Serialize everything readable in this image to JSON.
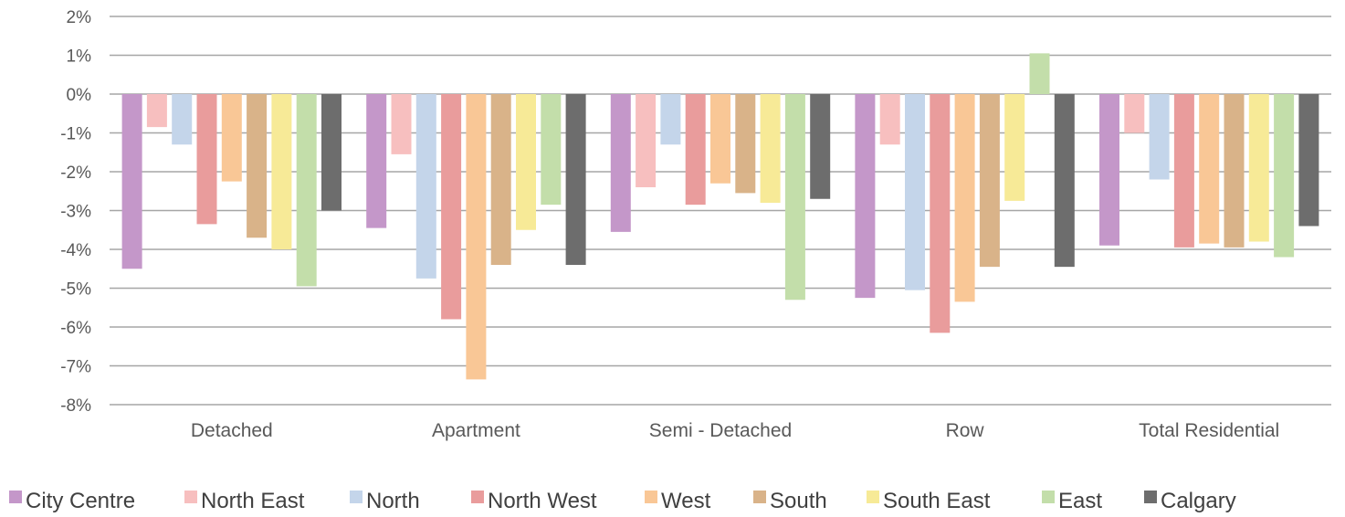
{
  "chart_data": {
    "type": "bar",
    "categories": [
      "Detached",
      "Apartment",
      "Semi - Detached",
      "Row",
      "Total Residential"
    ],
    "yunit": "%",
    "ylim": [
      -8,
      2
    ],
    "yticks": [
      2,
      1,
      0,
      -1,
      -2,
      -3,
      -4,
      -5,
      -6,
      -7,
      -8
    ],
    "ytick_labels": [
      "2%",
      "1%",
      "0%",
      "-1%",
      "-2%",
      "-3%",
      "-4%",
      "-5%",
      "-6%",
      "-7%",
      "-8%"
    ],
    "grid": true,
    "legend_position": "bottom",
    "series": [
      {
        "name": "City Centre",
        "color": "#c497c9",
        "values": [
          -4.5,
          -3.45,
          -3.55,
          -5.25,
          -3.9
        ]
      },
      {
        "name": "North East",
        "color": "#f7bfbf",
        "values": [
          -0.85,
          -1.55,
          -2.4,
          -1.3,
          -1.0
        ]
      },
      {
        "name": "North",
        "color": "#c4d5ea",
        "values": [
          -1.3,
          -4.75,
          -1.3,
          -5.05,
          -2.2
        ]
      },
      {
        "name": "North West",
        "color": "#e99c9c",
        "values": [
          -3.35,
          -5.8,
          -2.85,
          -6.15,
          -3.95
        ]
      },
      {
        "name": "West",
        "color": "#f9c796",
        "values": [
          -2.25,
          -7.35,
          -2.3,
          -5.35,
          -3.85
        ]
      },
      {
        "name": "South",
        "color": "#d9b389",
        "values": [
          -3.7,
          -4.4,
          -2.55,
          -4.45,
          -3.95
        ]
      },
      {
        "name": "South East",
        "color": "#f7ea97",
        "values": [
          -4.0,
          -3.5,
          -2.8,
          -2.75,
          -3.8
        ]
      },
      {
        "name": "East",
        "color": "#c3deaa",
        "values": [
          -4.95,
          -2.85,
          -5.3,
          1.05,
          -4.2
        ]
      },
      {
        "name": "Calgary",
        "color": "#6d6d6d",
        "values": [
          -3.0,
          -4.4,
          -2.7,
          -4.45,
          -3.4
        ]
      }
    ]
  }
}
